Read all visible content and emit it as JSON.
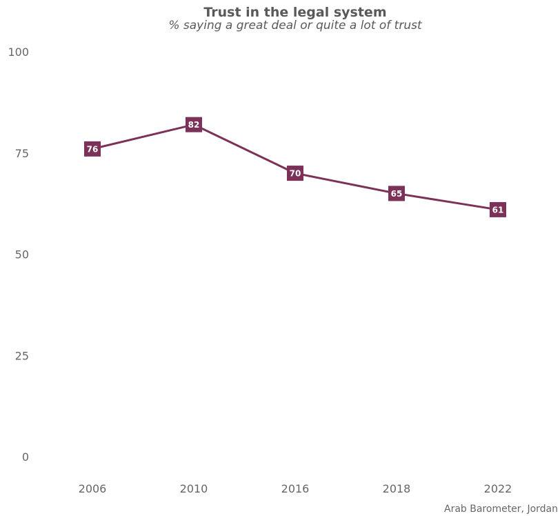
{
  "chart_data": {
    "type": "line",
    "title": "Trust in the legal system",
    "subtitle": "% saying a great deal or quite a lot of trust",
    "caption": "Arab Barometer, Jordan",
    "categories": [
      "2006",
      "2010",
      "2016",
      "2018",
      "2022"
    ],
    "series": [
      {
        "values": [
          76,
          82,
          70,
          65,
          61
        ]
      }
    ],
    "ylim": [
      0,
      100
    ],
    "yticks": [
      0,
      25,
      50,
      75,
      100
    ],
    "grid": false,
    "color": "#7b3158",
    "label_text_color": "#ffffff"
  }
}
